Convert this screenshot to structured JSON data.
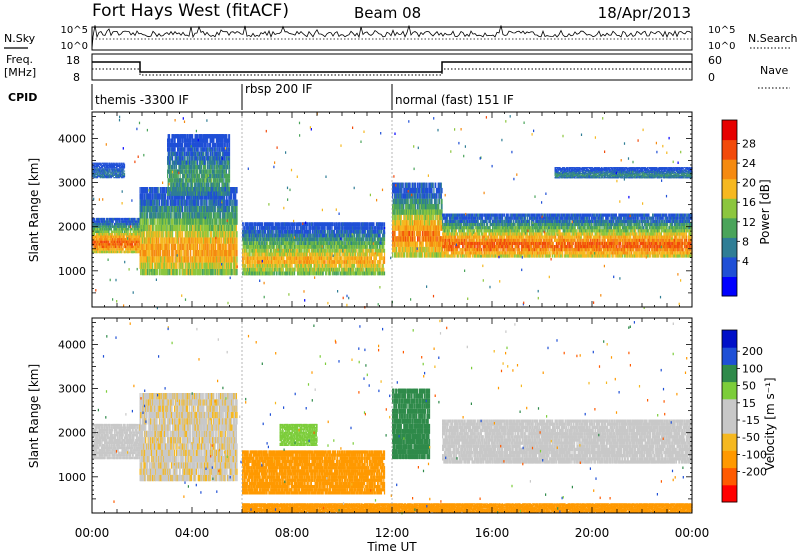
{
  "header": {
    "station": "Fort Hays West (fitACF)",
    "beam": "Beam 08",
    "date": "18/Apr/2013"
  },
  "panels": {
    "nsky_label": "N.Sky",
    "nsearch_label": "N.Search",
    "nsky_ticks": [
      "10^5",
      "10^0"
    ],
    "freq_label": "Freq.",
    "freq_unit": "[MHz]",
    "freq_ticks": [
      "18",
      "8"
    ],
    "nave_label": "Nave",
    "nave_ticks": [
      "60",
      "0"
    ],
    "cpid_label": "CPID",
    "cpid_segments": [
      {
        "label": "themis -3300 IF",
        "start_h": 0
      },
      {
        "label": "rbsp 200 IF",
        "start_h": 6
      },
      {
        "label": "normal (fast) 151 IF",
        "start_h": 12
      }
    ]
  },
  "axes": {
    "xlabel": "Time UT",
    "xticks": [
      "00:00",
      "04:00",
      "08:00",
      "12:00",
      "16:00",
      "20:00",
      "00:00"
    ],
    "xrange_h": [
      0,
      24
    ],
    "ylabel": "Slant Range [km]",
    "yticks": [
      "1000",
      "2000",
      "3000",
      "4000"
    ],
    "yrange_km": [
      180,
      4600
    ]
  },
  "power_colorbar": {
    "label": "Power [dB]",
    "ticks": [
      "28",
      "24",
      "20",
      "16",
      "12",
      "8",
      "4"
    ],
    "colors": [
      "#0000ff",
      "#1f4fd6",
      "#2f7d95",
      "#4aa45a",
      "#8cc63e",
      "#f6b820",
      "#f58a10",
      "#f24a0a",
      "#e60000"
    ]
  },
  "velocity_colorbar": {
    "label": "Velocity [m s⁻¹]",
    "ticks": [
      "200",
      "100",
      "50",
      "15",
      "-15",
      "-50",
      "-100",
      "-200"
    ],
    "colors": [
      "#ff0000",
      "#ff5a00",
      "#ff9900",
      "#f5b820",
      "#c8c8c8",
      "#c8c8c8",
      "#7ccd3a",
      "#2f8a4a",
      "#1e4fd6",
      "#0010c8"
    ]
  },
  "chart_data": [
    {
      "type": "heatmap",
      "quantity": "Power [dB]",
      "xlabel": "Time UT",
      "ylabel": "Slant Range [km]",
      "xlim": [
        0,
        24
      ],
      "ylim": [
        180,
        4600
      ],
      "bands": [
        {
          "t0": 0.0,
          "t1": 1.9,
          "r_lo": 1400,
          "r_hi": 2200,
          "peak_db": 28
        },
        {
          "t0": 1.9,
          "t1": 5.8,
          "r_lo": 900,
          "r_hi": 2900,
          "peak_db": 24
        },
        {
          "t0": 3.0,
          "t1": 5.5,
          "r_lo": 2700,
          "r_hi": 4100,
          "peak_db": 12
        },
        {
          "t0": 6.0,
          "t1": 11.7,
          "r_lo": 900,
          "r_hi": 2100,
          "peak_db": 22
        },
        {
          "t0": 12.0,
          "t1": 14.0,
          "r_lo": 1300,
          "r_hi": 3000,
          "peak_db": 26
        },
        {
          "t0": 14.0,
          "t1": 24.0,
          "r_lo": 1300,
          "r_hi": 2300,
          "peak_db": 28
        },
        {
          "t0": 18.5,
          "t1": 24.0,
          "r_lo": 3100,
          "r_hi": 3350,
          "peak_db": 10
        },
        {
          "t0": 0.0,
          "t1": 1.3,
          "r_lo": 3100,
          "r_hi": 3450,
          "peak_db": 8
        }
      ]
    },
    {
      "type": "heatmap",
      "quantity": "Velocity [m s⁻¹]",
      "xlabel": "Time UT",
      "ylabel": "Slant Range [km]",
      "xlim": [
        0,
        24
      ],
      "ylim": [
        180,
        4600
      ],
      "bands": [
        {
          "t0": 0.0,
          "t1": 1.9,
          "r_lo": 1400,
          "r_hi": 2200,
          "v": 0
        },
        {
          "t0": 1.9,
          "t1": 5.8,
          "r_lo": 900,
          "r_hi": 2900,
          "v": -10
        },
        {
          "t0": 6.0,
          "t1": 11.7,
          "r_lo": 600,
          "r_hi": 1600,
          "v": -60
        },
        {
          "t0": 7.5,
          "t1": 9.0,
          "r_lo": 1700,
          "r_hi": 2200,
          "v": 40
        },
        {
          "t0": 12.0,
          "t1": 13.5,
          "r_lo": 1400,
          "r_hi": 3000,
          "v": 60
        },
        {
          "t0": 14.0,
          "t1": 24.0,
          "r_lo": 1300,
          "r_hi": 2300,
          "v": 0
        },
        {
          "t0": 6.0,
          "t1": 24.0,
          "r_lo": 200,
          "r_hi": 400,
          "v": -60
        }
      ]
    }
  ]
}
